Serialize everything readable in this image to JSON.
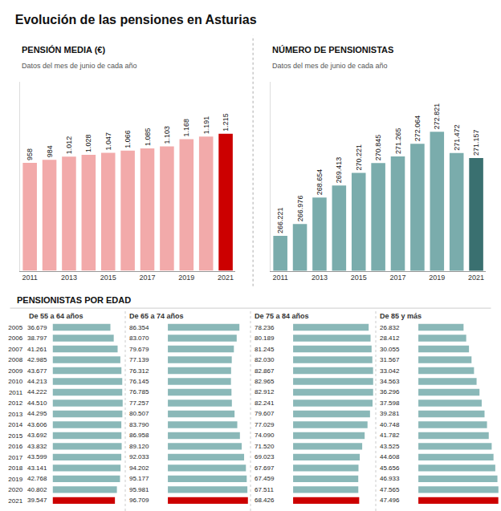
{
  "title": "Evolución de las pensiones en Asturias",
  "chart_data": [
    {
      "type": "bar",
      "title": "PENSIÓN MEDIA (€)",
      "subtitle": "Datos del mes de junio de cada año",
      "categories": [
        "2011",
        null,
        "2013",
        null,
        "2015",
        null,
        "2017",
        null,
        "2019",
        null,
        "2021"
      ],
      "values": [
        958,
        984,
        1012,
        1028,
        1047,
        1066,
        1085,
        1103,
        1168,
        1191,
        1215
      ],
      "value_labels": [
        "958",
        "984",
        "1.012",
        "1.028",
        "1.047",
        "1.066",
        "1.085",
        "1.103",
        "1.168",
        "1.191",
        "1.215"
      ],
      "colors": [
        "#f2aaaa",
        "#f2aaaa",
        "#f2aaaa",
        "#f2aaaa",
        "#f2aaaa",
        "#f2aaaa",
        "#f2aaaa",
        "#f2aaaa",
        "#f2aaaa",
        "#f2aaaa",
        "#cc0000"
      ],
      "ylim": [
        0,
        1676.7
      ],
      "data_labels": true,
      "tick_labels": "x"
    },
    {
      "type": "bar",
      "title": "NÚMERO DE PENSIONISTAS",
      "subtitle": "Datos del mes de junio de cada año",
      "categories": [
        "2011",
        null,
        "2013",
        null,
        "2015",
        null,
        "2017",
        null,
        "2019",
        null,
        "2021"
      ],
      "values": [
        266221,
        266976,
        268654,
        269413,
        270221,
        270845,
        271265,
        272064,
        272821,
        271472,
        271157
      ],
      "value_labels": [
        "266.221",
        "266.976",
        "268.654",
        "269.413",
        "270.221",
        "270.845",
        "271.265",
        "272.064",
        "272.821",
        "271.472",
        "271.157"
      ],
      "colors": [
        "#7aacac",
        "#7aacac",
        "#7aacac",
        "#7aacac",
        "#7aacac",
        "#7aacac",
        "#7aacac",
        "#7aacac",
        "#7aacac",
        "#7aacac",
        "#3a7070"
      ],
      "ylim": [
        264000,
        276000
      ],
      "data_labels": true,
      "tick_labels": "x"
    },
    {
      "type": "bar",
      "orientation": "horizontal",
      "title": "PENSIONISTAS POR EDAD",
      "categories": [
        "2005",
        "2006",
        "2007",
        "2008",
        "2009",
        "2010",
        "2011",
        "2012",
        "2013",
        "2014",
        "2015",
        "2016",
        "2017",
        "2018",
        "2019",
        "2020",
        "2021"
      ],
      "data_labels": true,
      "tick_labels": "y",
      "series": [
        {
          "name": "De 55 a 64 años",
          "values": [
            36679,
            38797,
            41261,
            42985,
            43677,
            44213,
            44222,
            44510,
            44295,
            43606,
            43692,
            43832,
            43599,
            43141,
            42768,
            40802,
            39547
          ],
          "value_labels": [
            "36.679",
            "38.797",
            "41.261",
            "42.985",
            "43.677",
            "44.213",
            "44.222",
            "44.510",
            "44.295",
            "43.606",
            "43.692",
            "43.832",
            "43.599",
            "43.141",
            "42.768",
            "40.802",
            "39.547"
          ],
          "colors": [
            "#8ab8b8",
            "#8ab8b8",
            "#8ab8b8",
            "#8ab8b8",
            "#8ab8b8",
            "#8ab8b8",
            "#8ab8b8",
            "#8ab8b8",
            "#8ab8b8",
            "#8ab8b8",
            "#8ab8b8",
            "#8ab8b8",
            "#8ab8b8",
            "#8ab8b8",
            "#8ab8b8",
            "#8ab8b8",
            "#cc0000"
          ],
          "xlim": [
            0,
            44510
          ]
        },
        {
          "name": "De 65 a 74 años",
          "values": [
            86354,
            83070,
            79679,
            77139,
            76312,
            76145,
            76785,
            77257,
            80507,
            83790,
            86958,
            89120,
            92033,
            94202,
            95177,
            95981,
            96709
          ],
          "value_labels": [
            "86.354",
            "83.070",
            "79.679",
            "77.139",
            "76.312",
            "76.145",
            "76.785",
            "77.257",
            "80.507",
            "83.790",
            "86.958",
            "89.120",
            "92.033",
            "94.202",
            "95.177",
            "95.981",
            "96.709"
          ],
          "colors": [
            "#8ab8b8",
            "#8ab8b8",
            "#8ab8b8",
            "#8ab8b8",
            "#8ab8b8",
            "#8ab8b8",
            "#8ab8b8",
            "#8ab8b8",
            "#8ab8b8",
            "#8ab8b8",
            "#8ab8b8",
            "#8ab8b8",
            "#8ab8b8",
            "#8ab8b8",
            "#8ab8b8",
            "#8ab8b8",
            "#cc0000"
          ],
          "xlim": [
            0,
            96709
          ]
        },
        {
          "name": "De 75 a 84 años",
          "values": [
            78236,
            80189,
            81245,
            82030,
            82867,
            82965,
            82912,
            82241,
            79607,
            77029,
            74090,
            71520,
            69023,
            67697,
            67459,
            67511,
            68426
          ],
          "value_labels": [
            "78.236",
            "80.189",
            "81.245",
            "82.030",
            "82.867",
            "82.965",
            "82.912",
            "82.241",
            "79.607",
            "77.029",
            "74.090",
            "71.520",
            "69.023",
            "67.697",
            "67.459",
            "67.511",
            "68.426"
          ],
          "colors": [
            "#8ab8b8",
            "#8ab8b8",
            "#8ab8b8",
            "#8ab8b8",
            "#8ab8b8",
            "#8ab8b8",
            "#8ab8b8",
            "#8ab8b8",
            "#8ab8b8",
            "#8ab8b8",
            "#8ab8b8",
            "#8ab8b8",
            "#8ab8b8",
            "#8ab8b8",
            "#8ab8b8",
            "#8ab8b8",
            "#cc0000"
          ],
          "xlim": [
            0,
            82965
          ]
        },
        {
          "name": "De 85 y más",
          "values": [
            26832,
            28412,
            30055,
            31567,
            33042,
            34563,
            36296,
            37598,
            39281,
            40748,
            41782,
            43525,
            44608,
            45656,
            46933,
            47565,
            47496
          ],
          "value_labels": [
            "26.832",
            "28.412",
            "30.055",
            "31.567",
            "33.042",
            "34.563",
            "36.296",
            "37.598",
            "39.281",
            "40.748",
            "41.782",
            "43.525",
            "44.608",
            "45.656",
            "46.933",
            "47.565",
            "47.496"
          ],
          "colors": [
            "#8ab8b8",
            "#8ab8b8",
            "#8ab8b8",
            "#8ab8b8",
            "#8ab8b8",
            "#8ab8b8",
            "#8ab8b8",
            "#8ab8b8",
            "#8ab8b8",
            "#8ab8b8",
            "#8ab8b8",
            "#8ab8b8",
            "#8ab8b8",
            "#8ab8b8",
            "#8ab8b8",
            "#8ab8b8",
            "#cc0000"
          ],
          "xlim": [
            0,
            47565
          ]
        }
      ]
    }
  ]
}
